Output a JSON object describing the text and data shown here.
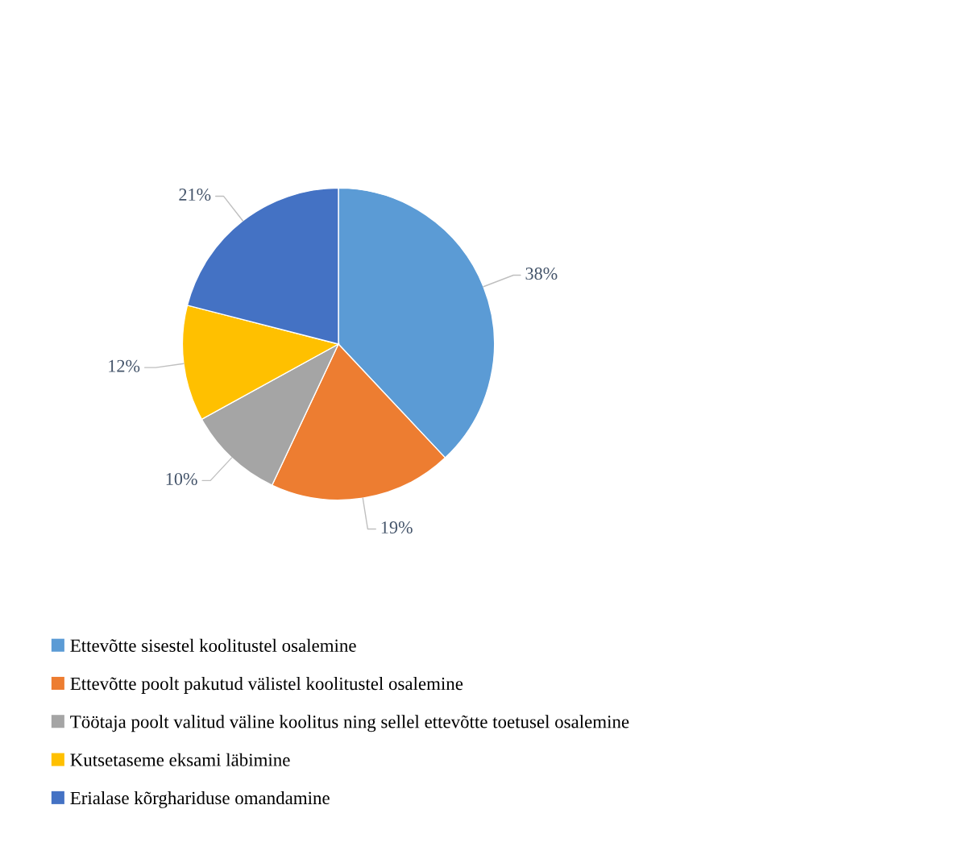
{
  "chart_data": {
    "type": "pie",
    "categories": [
      "Ettevõtte sisestel koolitustel osalemine",
      "Ettevõtte poolt pakutud välistel koolitustel osalemine",
      "Töötaja poolt valitud väline koolitus ning sellel ettevõtte toetusel osalemine",
      "Kutsetaseme eksami läbimine",
      "Erialase kõrghariduse omandamine"
    ],
    "values": [
      38,
      19,
      10,
      12,
      21
    ],
    "colors": [
      "#5b9bd5",
      "#ed7d31",
      "#a5a5a5",
      "#ffc000",
      "#4472c4"
    ],
    "value_labels": [
      "38%",
      "19%",
      "10%",
      "12%",
      "21%"
    ],
    "legend": "bottom"
  }
}
